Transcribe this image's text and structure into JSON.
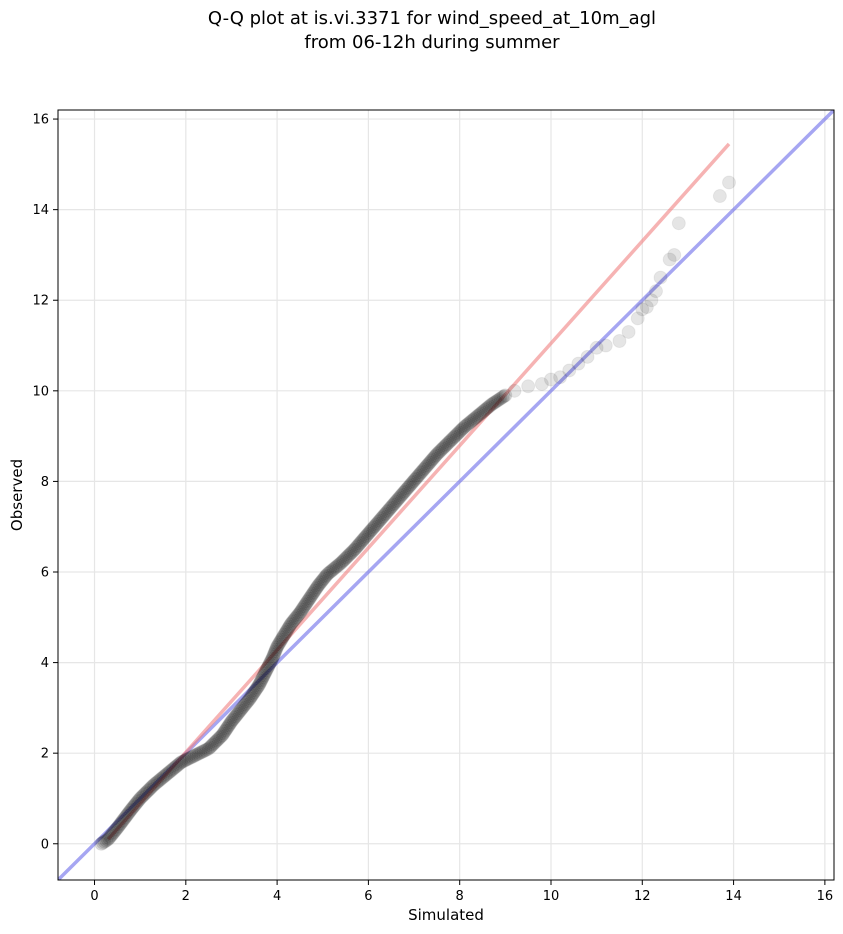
{
  "chart_data": {
    "type": "scatter",
    "title_lines": [
      "Q-Q plot at is.vi.3371 for wind_speed_at_10m_agl",
      "from 06-12h during summer"
    ],
    "xlabel": "Simulated",
    "ylabel": "Observed",
    "xlim": [
      -0.8,
      16.2
    ],
    "ylim": [
      -0.8,
      16.2
    ],
    "xticks": [
      0,
      2,
      4,
      6,
      8,
      10,
      12,
      14,
      16
    ],
    "yticks": [
      0,
      2,
      4,
      6,
      8,
      10,
      12,
      14,
      16
    ],
    "grid": true,
    "colors": {
      "points": "#000000",
      "fit_line": "#f08080",
      "identity_line": "#6b6bea",
      "grid": "#e6e6e6"
    },
    "reference_lines": [
      {
        "kind": "identity",
        "points": [
          [
            -0.8,
            -0.8
          ],
          [
            16.2,
            16.2
          ]
        ],
        "color": "#6b6bea"
      },
      {
        "kind": "fit",
        "points": [
          [
            0.3,
            0.1
          ],
          [
            13.9,
            15.45
          ]
        ],
        "color": "#f08080"
      }
    ],
    "quantile_curve": {
      "x": [
        0.15,
        0.3,
        0.5,
        0.8,
        1.0,
        1.3,
        1.6,
        1.9,
        2.2,
        2.5,
        2.8,
        3.0,
        3.2,
        3.4,
        3.6,
        3.75,
        3.9,
        4.0,
        4.15,
        4.3,
        4.5,
        4.7,
        4.9,
        5.1,
        5.4,
        5.7,
        6.0,
        6.3,
        6.6,
        6.9,
        7.2,
        7.5,
        7.8,
        8.1,
        8.4,
        8.7,
        9.0
      ],
      "y": [
        0.0,
        0.1,
        0.35,
        0.75,
        1.0,
        1.3,
        1.55,
        1.8,
        1.95,
        2.1,
        2.4,
        2.7,
        2.95,
        3.2,
        3.5,
        3.8,
        4.1,
        4.35,
        4.6,
        4.85,
        5.1,
        5.4,
        5.7,
        5.95,
        6.2,
        6.5,
        6.85,
        7.2,
        7.55,
        7.9,
        8.25,
        8.6,
        8.9,
        9.2,
        9.45,
        9.7,
        9.9
      ],
      "n": 320
    },
    "tail_points": {
      "x": [
        9.2,
        9.5,
        9.8,
        10.0,
        10.2,
        10.4,
        10.6,
        10.8,
        11.0,
        11.2,
        11.5,
        11.7,
        11.9,
        12.0,
        12.1,
        12.2,
        12.3,
        12.4,
        12.6,
        12.7,
        12.8,
        13.7,
        13.9
      ],
      "y": [
        10.0,
        10.1,
        10.15,
        10.25,
        10.3,
        10.45,
        10.6,
        10.75,
        10.95,
        11.0,
        11.1,
        11.3,
        11.6,
        11.8,
        11.85,
        12.0,
        12.2,
        12.5,
        12.9,
        13.0,
        13.7,
        14.3,
        14.6
      ]
    }
  }
}
